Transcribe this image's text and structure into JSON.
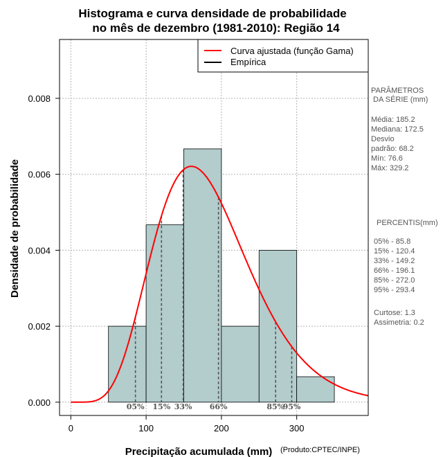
{
  "chart_data": {
    "type": "bar",
    "title": "Histograma e curva densidade de probabilidade",
    "subtitle": "no mês de dezembro (1981-2010): Região 14",
    "xlabel": "Precipitação acumulada (mm)",
    "ylabel": "Densidade de probabilidade",
    "credit": "(Produto:CPTEC/INPE)",
    "xlim": [
      -15,
      395
    ],
    "ylim": [
      -0.00035,
      0.00955
    ],
    "grid": true,
    "x_ticks": [
      0,
      100,
      200,
      300
    ],
    "y_ticks": [
      0.0,
      0.002,
      0.004,
      0.006,
      0.008
    ],
    "y_tick_labels": [
      "0.000",
      "0.002",
      "0.004",
      "0.006",
      "0.008"
    ],
    "bins": [
      {
        "start": 50,
        "end": 100,
        "density": 0.002
      },
      {
        "start": 100,
        "end": 150,
        "density": 0.00467
      },
      {
        "start": 150,
        "end": 200,
        "density": 0.00667
      },
      {
        "start": 200,
        "end": 250,
        "density": 0.002
      },
      {
        "start": 250,
        "end": 300,
        "density": 0.004
      },
      {
        "start": 300,
        "end": 350,
        "density": 0.00067
      }
    ],
    "gamma_fit": {
      "mean": 185.2,
      "sd": 68.2
    },
    "percentile_markers": [
      {
        "label": "05%",
        "x": 85.8
      },
      {
        "label": "15%",
        "x": 120.4
      },
      {
        "label": "33%",
        "x": 149.2
      },
      {
        "label": "66%",
        "x": 196.1
      },
      {
        "label": "85%",
        "x": 272.0
      },
      {
        "label": "95%",
        "x": 293.4
      }
    ],
    "legend": {
      "position": "top-right",
      "entries": [
        {
          "label": "Curva ajustada (função Gama)",
          "color": "#ff0000"
        },
        {
          "label": "Empírica",
          "color": "#000000"
        }
      ]
    },
    "colors": {
      "bar_fill": "#b3cccc",
      "curve": "#ff0000",
      "percentile_line": "#555555",
      "grid": "#b0b0b0"
    }
  },
  "side_panel": {
    "params_title_1": "PARÂMETROS",
    "params_title_2": "DA SÉRIE (mm)",
    "params": [
      "Média:  185.2",
      "Mediana:  172.5",
      "Desvio",
      "padrão:  68.2",
      "Mín:  76.6",
      "Máx:  329.2"
    ],
    "percentis_title": "PERCENTIS(mm)",
    "percentis": [
      "05% -   85.8",
      "15% -   120.4",
      "33% -   149.2",
      "66% -   196.1",
      "85% -   272.0",
      "95% -   293.4"
    ],
    "stats": [
      "Curtose:  1.3",
      "Assimetria:  0.2"
    ]
  }
}
